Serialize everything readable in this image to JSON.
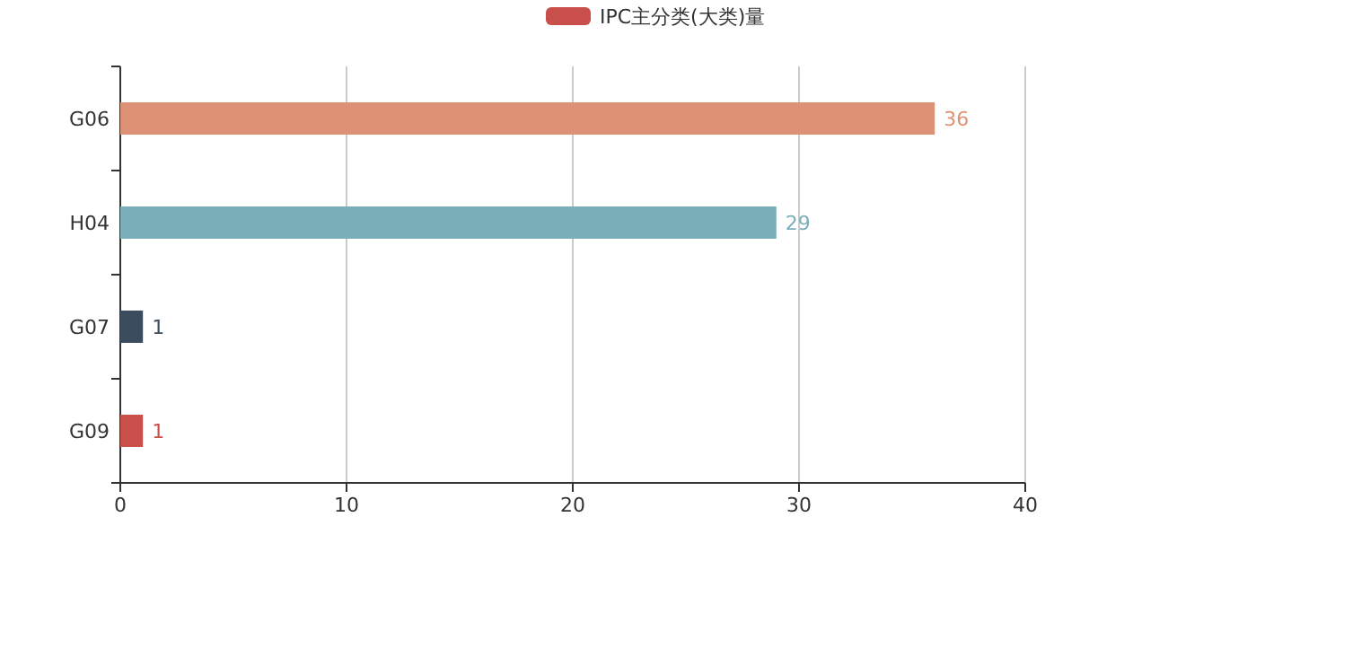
{
  "chart_data": {
    "type": "bar",
    "orientation": "horizontal",
    "categories": [
      "G06",
      "H04",
      "G07",
      "G09"
    ],
    "series": [
      {
        "name": "IPC主分类(大类)量",
        "color": "#c9504a",
        "colors": [
          "#de9275",
          "#7aaeb8",
          "#3a4c5e",
          "#c9504a"
        ],
        "values": [
          36,
          29,
          1,
          1
        ]
      }
    ],
    "xlim": [
      0,
      40
    ],
    "xticks": [
      0,
      10,
      20,
      30,
      40
    ],
    "grid": "x",
    "data_labels": true,
    "legend": "top"
  }
}
